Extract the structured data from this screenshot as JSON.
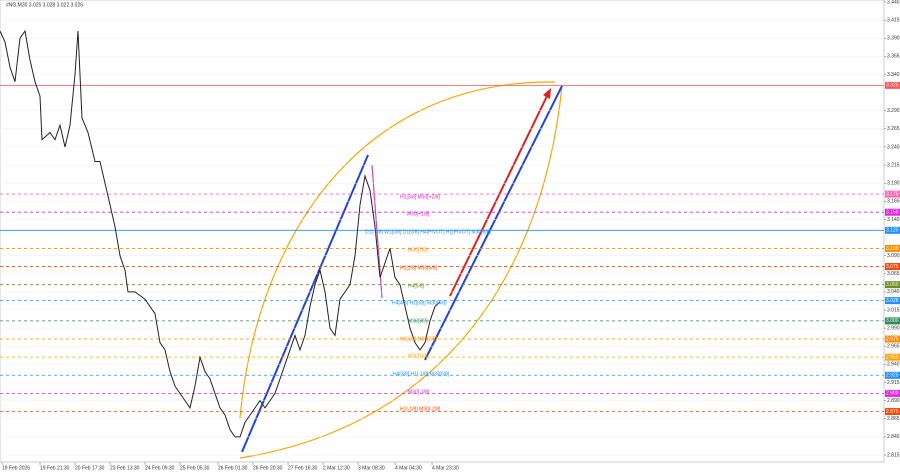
{
  "chart_data": {
    "type": "line",
    "title": "#NG,M30  3.025 3.028 3.022 3.026",
    "grid": true,
    "xlim": [
      0,
      884
    ],
    "ylim": [
      2.815,
      3.44
    ],
    "xticks": [
      {
        "value": 2,
        "label": "19 Feb 2026"
      },
      {
        "value": 40,
        "label": "19 Feb 21:30"
      },
      {
        "value": 75,
        "label": "20 Feb 17:30"
      },
      {
        "value": 110,
        "label": "23 Feb 13:30"
      },
      {
        "value": 145,
        "label": "24 Feb 09:30"
      },
      {
        "value": 180,
        "label": "25 Feb 05:30"
      },
      {
        "value": 218,
        "label": "26 Feb 01:30"
      },
      {
        "value": 253,
        "label": "26 Feb 20:30"
      },
      {
        "value": 288,
        "label": "27 Feb 16:30"
      },
      {
        "value": 323,
        "label": "2 Mar 12:30"
      },
      {
        "value": 358,
        "label": "3 Mar 08:30"
      },
      {
        "value": 395,
        "label": "4 Mar 04:30"
      },
      {
        "value": 432,
        "label": "4 Mar 23:30"
      }
    ],
    "yticks": [
      {
        "value": 3.44,
        "label": "3.440"
      },
      {
        "value": 3.415,
        "label": "3.415"
      },
      {
        "value": 3.39,
        "label": "3.390"
      },
      {
        "value": 3.365,
        "label": "3.365"
      },
      {
        "value": 3.34,
        "label": "3.340"
      },
      {
        "value": 3.29,
        "label": "3.290"
      },
      {
        "value": 3.265,
        "label": "3.265"
      },
      {
        "value": 3.24,
        "label": "3.240"
      },
      {
        "value": 3.215,
        "label": "3.215"
      },
      {
        "value": 3.19,
        "label": "3.190"
      },
      {
        "value": 3.165,
        "label": "3.165"
      },
      {
        "value": 3.14,
        "label": "3.140"
      },
      {
        "value": 3.09,
        "label": "3.090"
      },
      {
        "value": 3.065,
        "label": "3.065"
      },
      {
        "value": 3.04,
        "label": "3.040"
      },
      {
        "value": 3.015,
        "label": "3.015"
      },
      {
        "value": 2.99,
        "label": "2.990"
      },
      {
        "value": 2.965,
        "label": "2.965"
      },
      {
        "value": 2.94,
        "label": "2.940"
      },
      {
        "value": 2.915,
        "label": "2.915"
      },
      {
        "value": 2.89,
        "label": "2.890"
      },
      {
        "value": 2.865,
        "label": "2.865"
      },
      {
        "value": 2.84,
        "label": "2.840"
      },
      {
        "value": 2.815,
        "label": "2.815"
      }
    ],
    "series": [
      {
        "name": "#NG,M30",
        "color": "#222222",
        "x": [
          0,
          5,
          10,
          15,
          20,
          25,
          30,
          35,
          40,
          42,
          50,
          55,
          60,
          65,
          70,
          75,
          78,
          82,
          88,
          95,
          100,
          105,
          110,
          115,
          120,
          125,
          128,
          135,
          145,
          155,
          160,
          165,
          170,
          175,
          180,
          185,
          190,
          195,
          200,
          205,
          210,
          215,
          220,
          225,
          230,
          235,
          240,
          245,
          250,
          255,
          260,
          265,
          270,
          275,
          280,
          285,
          290,
          295,
          300,
          305,
          310,
          315,
          320,
          325,
          330,
          335,
          340,
          345,
          350,
          355,
          360,
          365,
          370,
          375,
          380,
          385,
          390,
          395,
          400,
          405,
          410,
          415,
          420,
          425,
          430,
          435,
          440
        ],
        "values": [
          3.4,
          3.385,
          3.35,
          3.33,
          3.39,
          3.4,
          3.36,
          3.33,
          3.31,
          3.25,
          3.26,
          3.25,
          3.27,
          3.24,
          3.27,
          3.34,
          3.4,
          3.28,
          3.26,
          3.22,
          3.22,
          3.19,
          3.16,
          3.13,
          3.09,
          3.07,
          3.04,
          3.04,
          3.03,
          3.01,
          2.97,
          2.96,
          2.93,
          2.91,
          2.9,
          2.89,
          2.88,
          2.91,
          2.95,
          2.93,
          2.92,
          2.9,
          2.88,
          2.87,
          2.85,
          2.84,
          2.84,
          2.86,
          2.87,
          2.88,
          2.89,
          2.88,
          2.89,
          2.9,
          2.92,
          2.94,
          2.96,
          2.98,
          2.96,
          2.98,
          3.02,
          3.05,
          3.07,
          3.04,
          2.99,
          2.98,
          3.03,
          3.04,
          3.05,
          3.09,
          3.16,
          3.2,
          3.18,
          3.13,
          3.06,
          3.08,
          3.1,
          3.06,
          3.05,
          3.02,
          2.99,
          2.97,
          2.96,
          2.97,
          3.0,
          3.02,
          3.026
        ]
      }
    ],
    "levels": [
      {
        "value": 3.325,
        "label": "3.325",
        "color": "#ff5555",
        "style": "solid"
      },
      {
        "value": 3.175,
        "label": "3.175",
        "color": "#ff69b4",
        "style": "dashed"
      },
      {
        "value": 3.15,
        "label": "3.150",
        "color": "#e020e0",
        "style": "dashed"
      },
      {
        "value": 3.125,
        "label": "3.125",
        "color": "#1e90ff",
        "style": "solid"
      },
      {
        "value": 3.1,
        "label": "3.100",
        "color": "#ff8c00",
        "style": "dashed"
      },
      {
        "value": 3.075,
        "label": "3.075",
        "color": "#ff4500",
        "style": "dashed"
      },
      {
        "value": 3.05,
        "label": "3.050",
        "color": "#6b8e23",
        "style": "dashed"
      },
      {
        "value": 3.028,
        "label": "3.028",
        "color": "#1e90ff",
        "style": "dashed"
      },
      {
        "value": 3.0,
        "label": "3.000",
        "color": "#2e8b57",
        "style": "dashed"
      },
      {
        "value": 2.975,
        "label": "2.975",
        "color": "#ff8c00",
        "style": "dashed"
      },
      {
        "value": 2.95,
        "label": "2.950",
        "color": "#ffa500",
        "style": "dashed"
      },
      {
        "value": 2.925,
        "label": "2.925",
        "color": "#1e90ff",
        "style": "dashed"
      },
      {
        "value": 2.9,
        "label": "2.900",
        "color": "#e020e0",
        "style": "dashed"
      },
      {
        "value": 2.875,
        "label": "2.875",
        "color": "#ff4500",
        "style": "dashed"
      }
    ],
    "annotations": [
      {
        "text": "H1[3/8] M30[+2/8]",
        "color": "#e020e0"
      },
      {
        "text": "M30[+1/8]",
        "color": "#e020e0"
      },
      {
        "text": "D1[-1/8] W1[0/8] D1[0/8] H4[PIVOT] H1[PIVOT] M30[8/8]",
        "color": "#1e90ff"
      },
      {
        "text": "M30[7/8]",
        "color": "#ff8c00"
      },
      {
        "text": "H1[1/8] M30[6/8]",
        "color": "#ff4500"
      },
      {
        "text": "H4[5/8]",
        "color": "#6b8e23"
      },
      {
        "text": "H4[4/8] H1[0/8] M30[4/8]",
        "color": "#1e90ff"
      },
      {
        "text": "M30[3/8]",
        "color": "#2e8b57"
      },
      {
        "text": "H1[1/8] M30[2/8]",
        "color": "#ff8c00"
      },
      {
        "text": "M30[1/8]",
        "color": "#ffa500"
      },
      {
        "text": "H4[3/8] H1[-1/8] M30[0/8]",
        "color": "#1e90ff"
      },
      {
        "text": "M30[-1/8]",
        "color": "#e020e0"
      },
      {
        "text": "H1[-1/8] M30[-2/8]",
        "color": "#ff4500"
      }
    ]
  }
}
